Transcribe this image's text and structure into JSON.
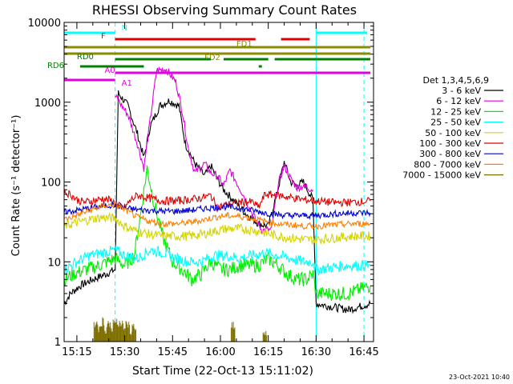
{
  "chart_data": {
    "type": "line",
    "title": "RHESSI Observing Summary Count Rates",
    "xlabel": "Start Time (22-Oct-13 15:11:02)",
    "ylabel": "Count Rate (s⁻¹ detector⁻¹)",
    "ylog": true,
    "xlim": [
      "15:11",
      "16:48"
    ],
    "ylim": [
      1,
      10000
    ],
    "x_ticks": [
      "15:15",
      "15:30",
      "15:45",
      "16:00",
      "16:15",
      "16:30",
      "16:45"
    ],
    "y_ticks": [
      "1",
      "10",
      "100",
      "1000",
      "10000"
    ],
    "grid": false,
    "legend_title": "Det 1,3,4,5,6,9",
    "legend_position": "right",
    "timestamp": "23-Oct-2021 10:40",
    "vertical_lines": [
      {
        "time": "15:11",
        "color": "#00ffff",
        "style": "solid"
      },
      {
        "time": "15:27",
        "color": "#00ffff",
        "style": "dashed"
      },
      {
        "time": "16:30",
        "color": "#00ffff",
        "style": "solid"
      },
      {
        "time": "16:45",
        "color": "#00ffff",
        "style": "dashed"
      }
    ],
    "flag_bars": [
      {
        "label": "N",
        "color": "#00ffff",
        "segments": [
          [
            "15:11",
            "15:27"
          ],
          [
            "16:30",
            "16:46"
          ]
        ]
      },
      {
        "label": "F",
        "color": "#e00000",
        "segments": [
          [
            "15:27",
            "16:11"
          ],
          [
            "16:19",
            "16:28"
          ]
        ]
      },
      {
        "label": "FD1",
        "color": "#8b8b00",
        "segments": [
          [
            "15:11",
            "16:47"
          ]
        ]
      },
      {
        "label": "FD2",
        "color": "#8b8b00",
        "segments": [
          [
            "15:11",
            "16:47"
          ]
        ]
      },
      {
        "label": "RD0",
        "color": "#008000",
        "segments": [
          [
            "15:27",
            "15:57"
          ],
          [
            "16:01",
            "16:15"
          ],
          [
            "16:17",
            "16:47"
          ]
        ]
      },
      {
        "label": "RD6",
        "color": "#008000",
        "segments": [
          [
            "15:16",
            "15:36"
          ],
          [
            "16:12",
            "16:13"
          ]
        ]
      },
      {
        "label": "A0",
        "color": "#e000e0",
        "segments": [
          [
            "15:27",
            "16:47"
          ]
        ]
      },
      {
        "label": "A1",
        "color": "#e000e0",
        "segments": [
          [
            "15:11",
            "15:27"
          ]
        ]
      }
    ],
    "series": [
      {
        "name": "3 - 6 keV",
        "color": "#000000",
        "points": [
          [
            "15:11",
            3
          ],
          [
            "15:13",
            4
          ],
          [
            "15:16",
            5
          ],
          [
            "15:20",
            6
          ],
          [
            "15:24",
            7
          ],
          [
            "15:27",
            8
          ],
          [
            "15:28",
            1300
          ],
          [
            "15:31",
            900
          ],
          [
            "15:34",
            400
          ],
          [
            "15:36",
            200
          ],
          [
            "15:38",
            500
          ],
          [
            "15:41",
            900
          ],
          [
            "15:44",
            1050
          ],
          [
            "15:47",
            900
          ],
          [
            "15:49",
            300
          ],
          [
            "15:52",
            170
          ],
          [
            "15:55",
            120
          ],
          [
            "15:57",
            160
          ],
          [
            "15:59",
            110
          ],
          [
            "16:01",
            80
          ],
          [
            "16:04",
            60
          ],
          [
            "16:08",
            40
          ],
          [
            "16:12",
            30
          ],
          [
            "16:15",
            28
          ],
          [
            "16:18",
            80
          ],
          [
            "16:20",
            180
          ],
          [
            "16:22",
            100
          ],
          [
            "16:24",
            90
          ],
          [
            "16:26",
            100
          ],
          [
            "16:29",
            60
          ],
          [
            "16:30",
            3
          ],
          [
            "16:40",
            2.5
          ],
          [
            "16:47",
            3
          ]
        ]
      },
      {
        "name": "6 - 12 keV",
        "color": "#e000e0",
        "points": [
          [
            "15:27",
            1200
          ],
          [
            "15:31",
            700
          ],
          [
            "15:34",
            300
          ],
          [
            "15:36",
            150
          ],
          [
            "15:38",
            600
          ],
          [
            "15:40",
            2500
          ],
          [
            "15:43",
            2600
          ],
          [
            "15:46",
            1800
          ],
          [
            "15:48",
            800
          ],
          [
            "15:50",
            250
          ],
          [
            "15:52",
            130
          ],
          [
            "15:55",
            170
          ],
          [
            "15:57",
            130
          ],
          [
            "15:59",
            120
          ],
          [
            "16:01",
            90
          ],
          [
            "16:03",
            140
          ],
          [
            "16:05",
            100
          ],
          [
            "16:08",
            60
          ],
          [
            "16:10",
            40
          ],
          [
            "16:13",
            25
          ],
          [
            "16:16",
            25
          ],
          [
            "16:18",
            90
          ],
          [
            "16:20",
            160
          ],
          [
            "16:22",
            110
          ],
          [
            "16:24",
            85
          ],
          [
            "16:26",
            90
          ],
          [
            "16:29",
            80
          ]
        ]
      },
      {
        "name": "12 - 25 keV",
        "color": "#00ee00",
        "points": [
          [
            "15:11",
            6
          ],
          [
            "15:14",
            7
          ],
          [
            "15:18",
            8
          ],
          [
            "15:22",
            9
          ],
          [
            "15:27",
            11
          ],
          [
            "15:30",
            9
          ],
          [
            "15:33",
            12
          ],
          [
            "15:35",
            40
          ],
          [
            "15:37",
            150
          ],
          [
            "15:39",
            60
          ],
          [
            "15:42",
            20
          ],
          [
            "15:45",
            10
          ],
          [
            "15:48",
            8
          ],
          [
            "15:51",
            6
          ],
          [
            "15:54",
            7
          ],
          [
            "15:57",
            10
          ],
          [
            "16:00",
            8
          ],
          [
            "16:03",
            8
          ],
          [
            "16:06",
            9
          ],
          [
            "16:09",
            9
          ],
          [
            "16:12",
            9
          ],
          [
            "16:15",
            11
          ],
          [
            "16:18",
            9
          ],
          [
            "16:21",
            7
          ],
          [
            "16:24",
            6
          ],
          [
            "16:27",
            6
          ],
          [
            "16:29",
            7
          ],
          [
            "16:30",
            4
          ],
          [
            "16:40",
            4
          ],
          [
            "16:47",
            5
          ]
        ]
      },
      {
        "name": "25 - 50 keV",
        "color": "#00ffff",
        "points": [
          [
            "15:11",
            8
          ],
          [
            "15:15",
            10
          ],
          [
            "15:19",
            12
          ],
          [
            "15:23",
            13
          ],
          [
            "15:27",
            14
          ],
          [
            "15:30",
            12
          ],
          [
            "15:34",
            11
          ],
          [
            "15:38",
            14
          ],
          [
            "15:42",
            13
          ],
          [
            "15:46",
            11
          ],
          [
            "15:50",
            10
          ],
          [
            "15:54",
            10
          ],
          [
            "15:58",
            12
          ],
          [
            "16:02",
            12
          ],
          [
            "16:06",
            11
          ],
          [
            "16:10",
            12
          ],
          [
            "16:14",
            13
          ],
          [
            "16:18",
            12
          ],
          [
            "16:22",
            11
          ],
          [
            "16:26",
            10
          ],
          [
            "16:29",
            10
          ],
          [
            "16:30",
            8
          ],
          [
            "16:40",
            9
          ],
          [
            "16:47",
            9
          ]
        ]
      },
      {
        "name": "50 - 100 keV",
        "color": "#d4d400",
        "points": [
          [
            "15:11",
            28
          ],
          [
            "15:15",
            31
          ],
          [
            "15:19",
            34
          ],
          [
            "15:23",
            36
          ],
          [
            "15:27",
            35
          ],
          [
            "15:30",
            28
          ],
          [
            "15:34",
            24
          ],
          [
            "15:38",
            22
          ],
          [
            "15:42",
            21
          ],
          [
            "15:46",
            21
          ],
          [
            "15:50",
            21
          ],
          [
            "15:54",
            22
          ],
          [
            "15:58",
            24
          ],
          [
            "16:02",
            26
          ],
          [
            "16:06",
            26
          ],
          [
            "16:10",
            25
          ],
          [
            "16:14",
            23
          ],
          [
            "16:18",
            21
          ],
          [
            "16:22",
            20
          ],
          [
            "16:26",
            19
          ],
          [
            "16:30",
            19
          ],
          [
            "16:36",
            20
          ],
          [
            "16:42",
            21
          ],
          [
            "16:47",
            21
          ]
        ]
      },
      {
        "name": "100 - 300 keV",
        "color": "#e00000",
        "points": [
          [
            "15:11",
            75
          ],
          [
            "15:13",
            70
          ],
          [
            "15:15",
            60
          ],
          [
            "15:17",
            56
          ],
          [
            "15:20",
            58
          ],
          [
            "15:23",
            62
          ],
          [
            "15:26",
            58
          ],
          [
            "15:28",
            50
          ],
          [
            "15:30",
            48
          ],
          [
            "15:32",
            60
          ],
          [
            "15:34",
            68
          ],
          [
            "15:38",
            62
          ],
          [
            "15:42",
            58
          ],
          [
            "15:46",
            58
          ],
          [
            "15:50",
            60
          ],
          [
            "15:54",
            63
          ],
          [
            "15:57",
            68
          ],
          [
            "15:59",
            48
          ],
          [
            "16:02",
            52
          ],
          [
            "16:06",
            56
          ],
          [
            "16:10",
            56
          ],
          [
            "16:12",
            48
          ],
          [
            "16:14",
            70
          ],
          [
            "16:18",
            68
          ],
          [
            "16:22",
            64
          ],
          [
            "16:26",
            60
          ],
          [
            "16:30",
            58
          ],
          [
            "16:36",
            55
          ],
          [
            "16:42",
            56
          ],
          [
            "16:47",
            58
          ]
        ]
      },
      {
        "name": "300 - 800 keV",
        "color": "#0000d0",
        "points": [
          [
            "15:11",
            42
          ],
          [
            "15:15",
            44
          ],
          [
            "15:19",
            47
          ],
          [
            "15:23",
            50
          ],
          [
            "15:27",
            52
          ],
          [
            "15:30",
            47
          ],
          [
            "15:34",
            45
          ],
          [
            "15:38",
            44
          ],
          [
            "15:42",
            43
          ],
          [
            "15:46",
            43
          ],
          [
            "15:50",
            44
          ],
          [
            "15:54",
            46
          ],
          [
            "15:58",
            48
          ],
          [
            "16:02",
            49
          ],
          [
            "16:06",
            47
          ],
          [
            "16:10",
            44
          ],
          [
            "16:14",
            41
          ],
          [
            "16:18",
            39
          ],
          [
            "16:22",
            38
          ],
          [
            "16:26",
            38
          ],
          [
            "16:30",
            38
          ],
          [
            "16:36",
            40
          ],
          [
            "16:42",
            41
          ],
          [
            "16:47",
            41
          ]
        ]
      },
      {
        "name": "800 - 7000 keV",
        "color": "#ff8000",
        "points": [
          [
            "15:11",
            34
          ],
          [
            "15:15",
            38
          ],
          [
            "15:19",
            44
          ],
          [
            "15:23",
            50
          ],
          [
            "15:27",
            52
          ],
          [
            "15:30",
            45
          ],
          [
            "15:34",
            36
          ],
          [
            "15:38",
            32
          ],
          [
            "15:42",
            30
          ],
          [
            "15:46",
            30
          ],
          [
            "15:50",
            31
          ],
          [
            "15:54",
            33
          ],
          [
            "15:58",
            36
          ],
          [
            "16:02",
            38
          ],
          [
            "16:06",
            37
          ],
          [
            "16:10",
            35
          ],
          [
            "16:14",
            32
          ],
          [
            "16:18",
            30
          ],
          [
            "16:22",
            29
          ],
          [
            "16:26",
            28
          ],
          [
            "16:30",
            28
          ],
          [
            "16:36",
            29
          ],
          [
            "16:42",
            30
          ],
          [
            "16:47",
            30
          ]
        ]
      },
      {
        "name": "7000 - 15000 keV",
        "color": "#807000",
        "points": [
          [
            "15:21",
            1.8
          ],
          [
            "15:22",
            1.5
          ],
          [
            "15:23",
            1.9
          ],
          [
            "15:24",
            1.4
          ],
          [
            "15:25",
            1.7
          ],
          [
            "15:26",
            1.5
          ],
          [
            "15:27",
            1.8
          ],
          [
            "15:28",
            1.6
          ],
          [
            "15:29",
            1.9
          ],
          [
            "15:30",
            1.4
          ],
          [
            "15:31",
            1.7
          ],
          [
            "15:32",
            1.3
          ],
          [
            "15:33",
            1.6
          ],
          [
            "16:04",
            1.7
          ],
          [
            "16:14",
            1.3
          ]
        ]
      }
    ]
  }
}
